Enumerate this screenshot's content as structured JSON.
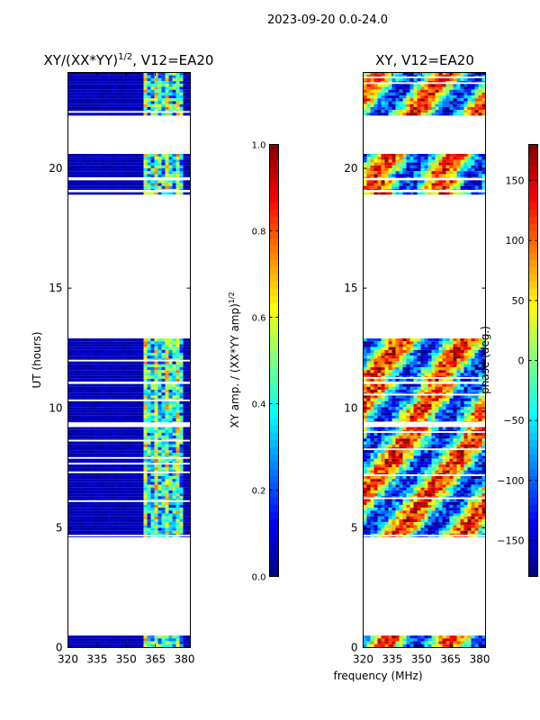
{
  "figure": {
    "suptitle": "2023-09-20 0.0-24.0",
    "shared_xlabel": "frequency (MHz)"
  },
  "colors": {
    "jet": [
      "#00007f",
      "#0000ff",
      "#007fff",
      "#00ffff",
      "#7fff7f",
      "#ffff00",
      "#ff7f00",
      "#ff0000",
      "#7f0000"
    ],
    "frame": "#000000",
    "background": "#ffffff"
  },
  "chart_data": [
    {
      "type": "heatmap",
      "title": "XY/(XX*YY)",
      "title_exponent": "1/2",
      "title_suffix": ", V12=EA20",
      "ylabel": "UT (hours)",
      "xlabel": "",
      "xlim": [
        320,
        383
      ],
      "ylim": [
        0,
        24
      ],
      "xticks": [
        320,
        335,
        350,
        365,
        380
      ],
      "xtick_labels": [
        "320",
        "335",
        "350",
        "365",
        "380"
      ],
      "yticks": [
        0,
        5,
        10,
        15,
        20
      ],
      "ytick_labels": [
        "0",
        "5",
        "10",
        "15",
        "20"
      ],
      "data_spans_hours": [
        [
          0.0,
          0.5
        ],
        [
          4.6,
          9.2
        ],
        [
          9.4,
          11.0
        ],
        [
          11.1,
          12.9
        ],
        [
          18.9,
          19.0
        ],
        [
          19.1,
          19.5
        ],
        [
          19.6,
          20.6
        ],
        [
          22.2,
          24.0
        ]
      ],
      "hot_band_mhz": [
        359,
        380
      ],
      "mode": "amp",
      "colorbar": {
        "label": "XY amp. / (XX*YY amp)",
        "label_exponent": "1/2",
        "range": [
          0.0,
          1.0
        ],
        "ticks": [
          0.0,
          0.2,
          0.4,
          0.6,
          0.8,
          1.0
        ],
        "tick_labels": [
          "0.0",
          "0.2",
          "0.4",
          "0.6",
          "0.8",
          "1.0"
        ],
        "tick_side": "left"
      }
    },
    {
      "type": "heatmap",
      "title": "XY, V12=EA20",
      "title_exponent": "",
      "title_suffix": "",
      "ylabel": "",
      "xlabel": "frequency (MHz)",
      "xlim": [
        320,
        383
      ],
      "ylim": [
        0,
        24
      ],
      "xticks": [
        320,
        335,
        350,
        365,
        380
      ],
      "xtick_labels": [
        "320",
        "335",
        "350",
        "365",
        "380"
      ],
      "yticks": [
        0,
        5,
        10,
        15,
        20
      ],
      "ytick_labels": [
        "0",
        "5",
        "10",
        "15",
        "20"
      ],
      "data_spans_hours": [
        [
          0.0,
          0.5
        ],
        [
          4.6,
          9.2
        ],
        [
          9.4,
          11.0
        ],
        [
          11.1,
          12.9
        ],
        [
          18.9,
          19.0
        ],
        [
          19.1,
          19.5
        ],
        [
          19.6,
          20.6
        ],
        [
          22.2,
          24.0
        ]
      ],
      "mode": "phase",
      "colorbar": {
        "label": "phase (deg.)",
        "label_exponent": "",
        "range": [
          -180,
          180
        ],
        "ticks": [
          -150,
          -100,
          -50,
          0,
          50,
          100,
          150
        ],
        "tick_labels": [
          "−150",
          "−100",
          "−50",
          "0",
          "50",
          "100",
          "150"
        ],
        "tick_side": "right"
      }
    }
  ]
}
